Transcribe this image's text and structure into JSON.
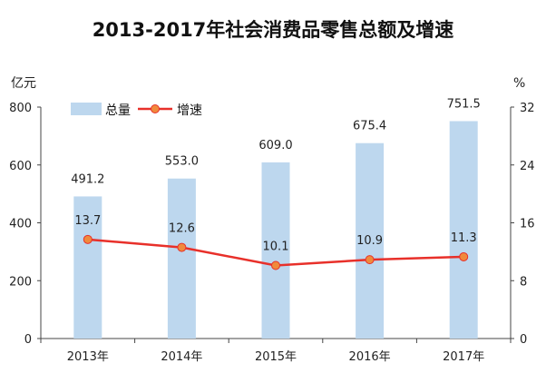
{
  "chart_data": {
    "type": "bar",
    "title": "2013-2017年社会消费品零售总额及增速",
    "categories": [
      "2013年",
      "2014年",
      "2015年",
      "2016年",
      "2017年"
    ],
    "series": [
      {
        "name": "总量",
        "type": "bar",
        "axis": "left",
        "values": [
          491.2,
          553.0,
          609.0,
          675.4,
          751.5
        ],
        "labels": [
          "491.2",
          "553.0",
          "609.0",
          "675.4",
          "751.5"
        ],
        "color": "#BDD7EE"
      },
      {
        "name": "增速",
        "type": "line",
        "axis": "right",
        "values": [
          13.7,
          12.6,
          10.1,
          10.9,
          11.3
        ],
        "labels": [
          "13.7",
          "12.6",
          "10.1",
          "10.9",
          "11.3"
        ],
        "color": "#E8302A",
        "marker_color": "#F08A3C"
      }
    ],
    "y_left": {
      "unit": "亿元",
      "ylim": [
        0,
        800
      ],
      "ticks": [
        "0",
        "200",
        "400",
        "600",
        "800"
      ],
      "tick_values": [
        0,
        200,
        400,
        600,
        800
      ]
    },
    "y_right": {
      "unit": "%",
      "ylim": [
        0,
        32
      ],
      "ticks": [
        "0",
        "8",
        "16",
        "24",
        "32"
      ],
      "tick_values": [
        0,
        8,
        16,
        24,
        32
      ]
    },
    "legend_position": "top-left",
    "grid": false
  }
}
